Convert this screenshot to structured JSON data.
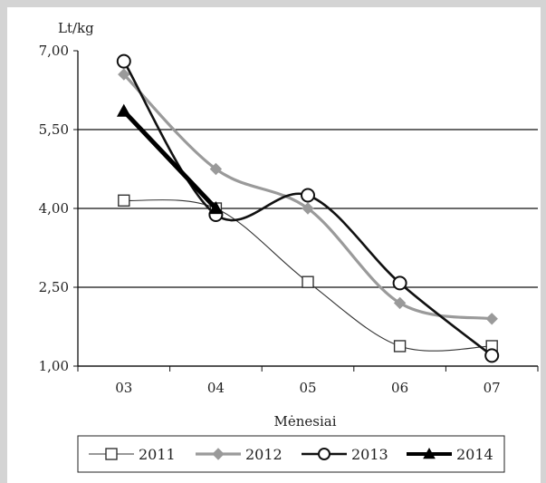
{
  "chart_data": {
    "type": "line",
    "ylabel": "Lt/kg",
    "xlabel": "Mėnesiai",
    "categories": [
      "03",
      "04",
      "05",
      "06",
      "07"
    ],
    "y_ticks": [
      "7,00",
      "5,50",
      "4,00",
      "2,50",
      "1,00"
    ],
    "ylim": [
      1.0,
      7.0
    ],
    "grid": "horizontal",
    "legend_position": "bottom",
    "series": [
      {
        "name": "2011",
        "color": "#333333",
        "marker": "square",
        "values": [
          4.15,
          4.0,
          2.6,
          1.38,
          1.38
        ]
      },
      {
        "name": "2012",
        "color": "#9a9a9a",
        "marker": "diamond",
        "values": [
          6.55,
          4.75,
          4.0,
          2.2,
          1.9
        ]
      },
      {
        "name": "2013",
        "color": "#111111",
        "marker": "circle",
        "values": [
          6.8,
          3.88,
          4.25,
          2.58,
          1.2
        ]
      },
      {
        "name": "2014",
        "color": "#000000",
        "marker": "triangle",
        "values": [
          5.85,
          4.0,
          null,
          null,
          null
        ]
      }
    ]
  }
}
